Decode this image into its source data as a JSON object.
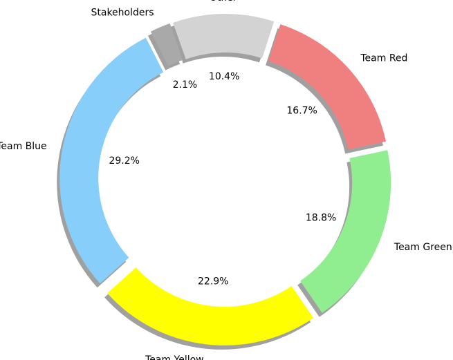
{
  "chart_data": {
    "type": "pie",
    "style": "donut",
    "title": "",
    "shadow": true,
    "exploded": true,
    "slices": [
      {
        "label": "Team Red",
        "pct_label": "16.7%",
        "value": 16.7,
        "color": "#f08080"
      },
      {
        "label": "Team Green",
        "pct_label": "18.8%",
        "value": 18.8,
        "color": "#90ee90"
      },
      {
        "label": "Team Yellow",
        "pct_label": "22.9%",
        "value": 22.9,
        "color": "#ffff00"
      },
      {
        "label": "Team Blue",
        "pct_label": "29.2%",
        "value": 29.2,
        "color": "#87cefa"
      },
      {
        "label": "Stakeholders",
        "pct_label": "2.1%",
        "value": 2.1,
        "color": "#a9a9a9"
      },
      {
        "label": "Other",
        "pct_label": "10.4%",
        "value": 10.4,
        "color": "#d3d3d3"
      }
    ]
  }
}
